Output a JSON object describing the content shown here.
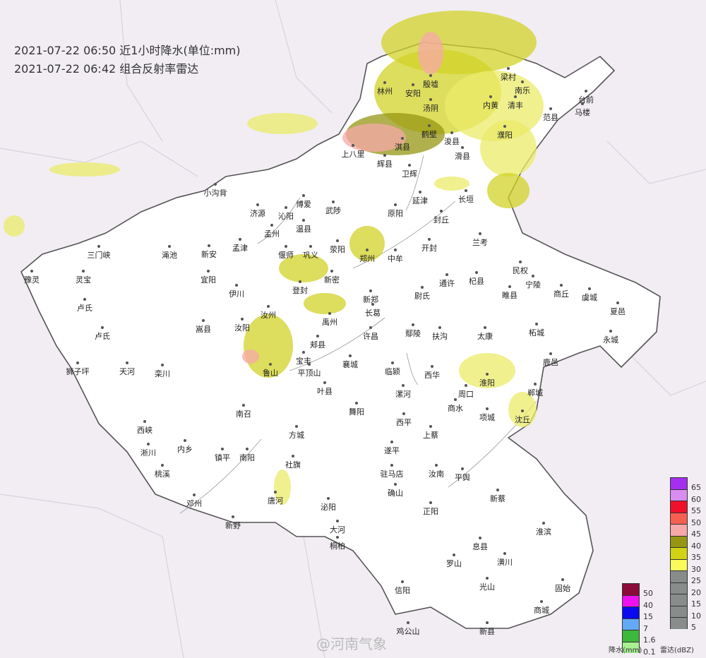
{
  "header": {
    "line1": "2021-07-22 06:50 近1小时降水(单位:mm)",
    "line2": "2021-07-22 06:42 组合反射率雷达"
  },
  "watermark": "@河南气象",
  "map": {
    "background": "#f1edf3",
    "province_fill": "#ffffff",
    "radar_colors": [
      "#d2d228",
      "#ebeb6a",
      "#969614",
      "#f7a8a8"
    ]
  },
  "cities": [
    "林州",
    "安阳",
    "殷墟",
    "汤阴",
    "内黄",
    "清丰",
    "梁村",
    "南乐",
    "范县",
    "台前",
    "马楼",
    "濮阳",
    "鹤壁",
    "浚县",
    "淇县",
    "滑县",
    "上八里",
    "辉县",
    "卫辉",
    "小沟背",
    "济源",
    "沁阳",
    "博爱",
    "武陟",
    "原阳",
    "延津",
    "长垣",
    "封丘",
    "孟州",
    "温县",
    "孟津",
    "偃师",
    "巩义",
    "荥阳",
    "郑州",
    "中牟",
    "开封",
    "兰考",
    "三门峡",
    "灵宝",
    "渑池",
    "新安",
    "宜阳",
    "伊川",
    "登封",
    "新密",
    "新郑",
    "尉氏",
    "通许",
    "杞县",
    "民权",
    "睢县",
    "宁陵",
    "商丘",
    "虞城",
    "夏邑",
    "永城",
    "卢氏",
    "嵩县",
    "汝阳",
    "汝州",
    "禹州",
    "长葛",
    "许昌",
    "鄢陵",
    "扶沟",
    "太康",
    "柘城",
    "鹿邑",
    "郏县",
    "宝丰",
    "鲁山",
    "平顶山",
    "叶县",
    "襄城",
    "临颍",
    "周口",
    "郸城",
    "淮阳",
    "商水",
    "项城",
    "沈丘",
    "西华",
    "漯河",
    "舞阳",
    "西平",
    "上蔡",
    "汝南",
    "平舆",
    "遂平",
    "驻马店",
    "确山",
    "正阳",
    "新蔡",
    "息县",
    "淮滨",
    "潢川",
    "光山",
    "商城",
    "固始",
    "新县",
    "罗山",
    "信阳",
    "鸡公山",
    "西峡",
    "内乡",
    "淅川",
    "镇平",
    "南阳",
    "方城",
    "社旗",
    "唐河",
    "泌阳",
    "桐柏",
    "新野",
    "邓州",
    "南召",
    "栾川",
    "天河",
    "狮子坪",
    "豫灵",
    "卢氏",
    "桃溪",
    "大河"
  ],
  "legend_rain": {
    "title": "降水(mm)",
    "items": [
      {
        "label": "50",
        "color": "#8b0a3a"
      },
      {
        "label": "40",
        "color": "#ee10ee"
      },
      {
        "label": "15",
        "color": "#0a0af0"
      },
      {
        "label": "7",
        "color": "#62aaf5"
      },
      {
        "label": "1.6",
        "color": "#3cb83c"
      },
      {
        "label": "0.1",
        "color": "#a8f090"
      }
    ]
  },
  "legend_radar": {
    "title": "雷达(dBZ)",
    "items": [
      {
        "label": "65",
        "color": "#a42ff0"
      },
      {
        "label": "60",
        "color": "#d88ef0"
      },
      {
        "label": "55",
        "color": "#f0102a"
      },
      {
        "label": "50",
        "color": "#f76050"
      },
      {
        "label": "45",
        "color": "#f7a8a8"
      },
      {
        "label": "40",
        "color": "#969614"
      },
      {
        "label": "35",
        "color": "#d2d214"
      },
      {
        "label": "30",
        "color": "#fafa5a"
      },
      {
        "label": "25",
        "color": "#888c8a"
      },
      {
        "label": "20",
        "color": "#888c8a"
      },
      {
        "label": "15",
        "color": "#888c8a"
      },
      {
        "label": "10",
        "color": "#888c8a"
      },
      {
        "label": "5",
        "color": "#888c8a"
      }
    ]
  }
}
